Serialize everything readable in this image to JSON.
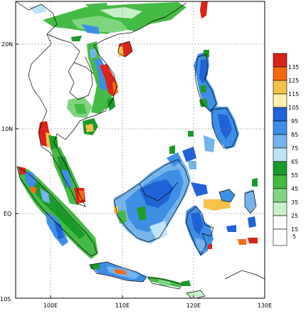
{
  "map": {
    "lat_labels": [
      "20N",
      "10N",
      "EQ",
      "10S"
    ],
    "lon_labels": [
      "100E",
      "110E",
      "120E",
      "130E"
    ],
    "grid": true
  },
  "legend": {
    "levels": [
      "135",
      "125",
      "115",
      "105",
      "95",
      "85",
      "75",
      "65",
      "55",
      "45",
      "35",
      "25",
      "15",
      "5"
    ],
    "colors": [
      "#dc2318",
      "#f56b12",
      "#f8c14a",
      "#fff2b0",
      "#1f63d6",
      "#3f8ee6",
      "#74b4ec",
      "#bfe3f7",
      "#1a9a28",
      "#44bb44",
      "#7fd57f",
      "#c8f0c8",
      "#ffffff",
      "#ffffff"
    ]
  }
}
